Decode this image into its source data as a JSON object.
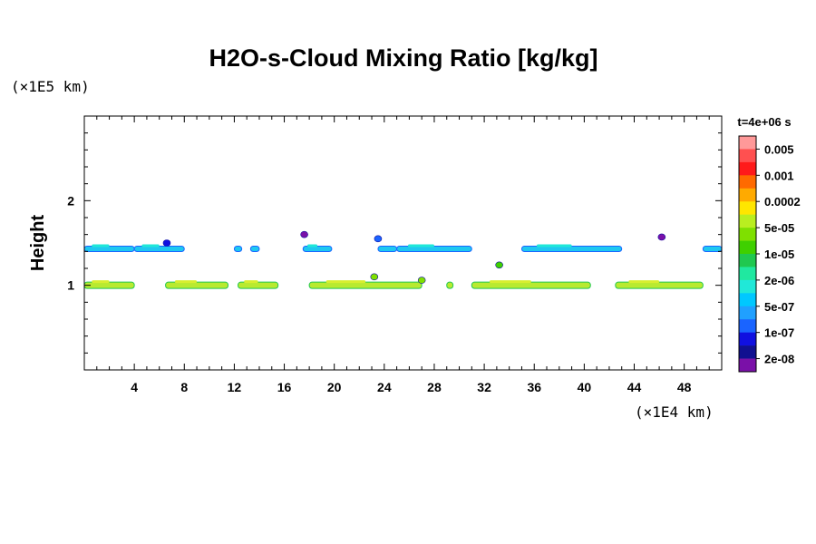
{
  "chart_data": {
    "type": "heatmap",
    "title": "H2O-s-Cloud Mixing Ratio [kg/kg]",
    "ylabel": "Height",
    "x_unit": "(×1E4 km)",
    "y_unit": "(×1E5 km)",
    "time_label": "t=4e+06 s",
    "xlim": [
      0,
      51
    ],
    "ylim": [
      0,
      3
    ],
    "x_ticks": [
      4,
      8,
      12,
      16,
      20,
      24,
      28,
      32,
      36,
      40,
      44,
      48
    ],
    "y_ticks": [
      1,
      2
    ],
    "colorbar": {
      "levels": [
        "0.005",
        "0.001",
        "0.0002",
        "5e-05",
        "1e-05",
        "2e-06",
        "5e-07",
        "1e-07",
        "2e-08"
      ],
      "colors": [
        "#ff9999",
        "#ff5050",
        "#ff1a1a",
        "#ff6a00",
        "#ffaa00",
        "#ffe600",
        "#b9ee20",
        "#7fe000",
        "#3fd000",
        "#20c850",
        "#20e8a0",
        "#20e8d8",
        "#00c8ff",
        "#20a0ff",
        "#1a64ff",
        "#1010e0",
        "#101090",
        "#7a10a8"
      ]
    },
    "cloud_layers": [
      {
        "name": "upper",
        "y": 1.43,
        "segments": [
          [
            0,
            4.0
          ],
          [
            4.0,
            8.0
          ],
          [
            12.0,
            12.6
          ],
          [
            13.3,
            14.0
          ],
          [
            17.5,
            19.8
          ],
          [
            23.5,
            25.0
          ],
          [
            25.0,
            31.0
          ],
          [
            35.0,
            43.0
          ],
          [
            49.5,
            51.0
          ]
        ],
        "color": "#1ec8f0"
      },
      {
        "name": "lower",
        "y": 1.0,
        "segments": [
          [
            0,
            4.0
          ],
          [
            6.5,
            11.5
          ],
          [
            12.3,
            15.5
          ],
          [
            18.0,
            27.0
          ],
          [
            29.0,
            29.5
          ],
          [
            31.0,
            40.5
          ],
          [
            42.5,
            49.5
          ]
        ],
        "color": "#b8ea30"
      }
    ],
    "blobs": [
      {
        "x": 17.6,
        "y": 1.6,
        "color": "#7a10a8"
      },
      {
        "x": 23.5,
        "y": 1.55,
        "color": "#1a64ff"
      },
      {
        "x": 46.2,
        "y": 1.57,
        "color": "#7a10a8"
      },
      {
        "x": 33.2,
        "y": 1.24,
        "color": "#3fd000"
      },
      {
        "x": 23.2,
        "y": 1.1,
        "color": "#7fe000"
      },
      {
        "x": 6.6,
        "y": 1.5,
        "color": "#1010e0"
      },
      {
        "x": 27.0,
        "y": 1.06,
        "color": "#7fe000"
      }
    ]
  }
}
